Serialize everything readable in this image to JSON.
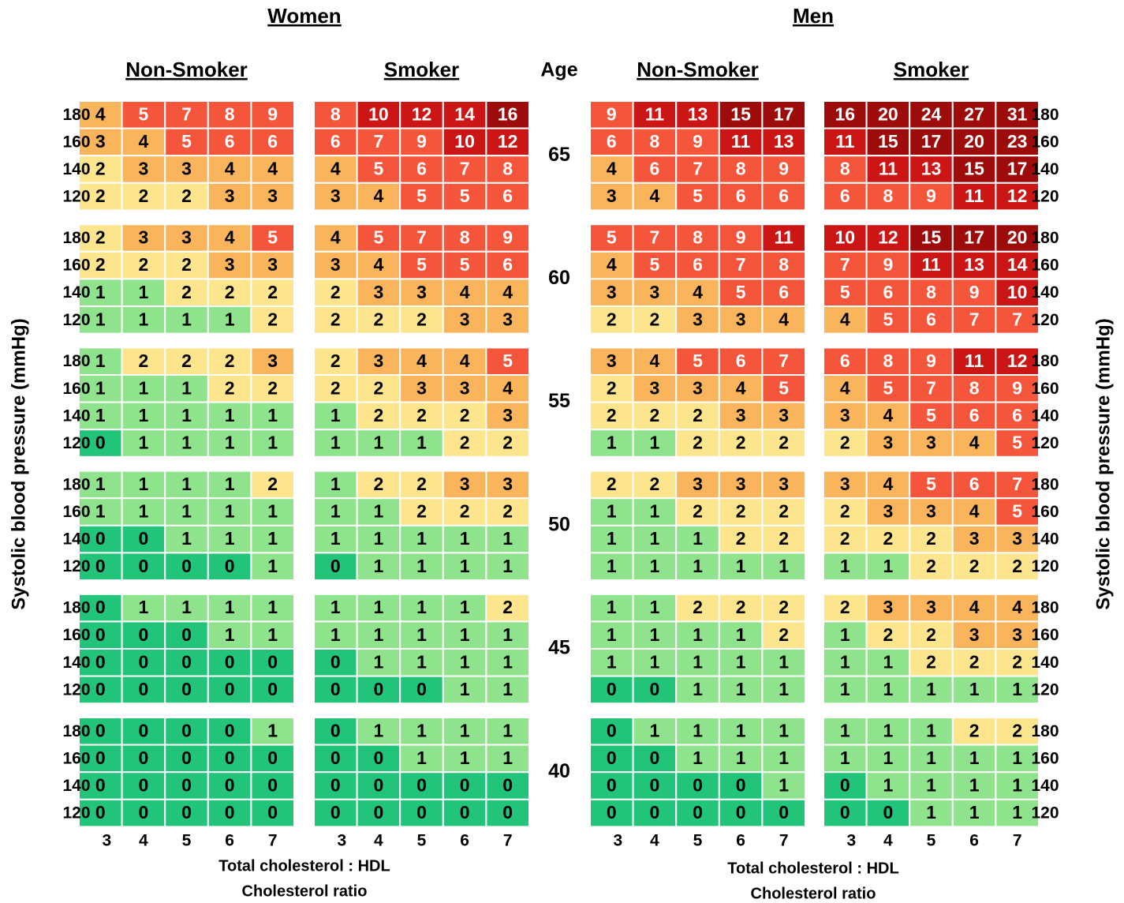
{
  "y_label": "Systolic blood pressure (mmHg)",
  "age_header": "Age",
  "ages": [
    {
      "age": 65,
      "sbp": [
        180,
        160,
        140,
        120
      ]
    },
    {
      "age": 60,
      "sbp": [
        180,
        160,
        140,
        120
      ]
    },
    {
      "age": 55,
      "sbp": [
        180,
        160,
        140,
        120
      ]
    },
    {
      "age": 50,
      "sbp": [
        180,
        160,
        140,
        120
      ]
    },
    {
      "age": 45,
      "sbp": [
        180,
        160,
        140,
        120
      ]
    },
    {
      "age": 40,
      "sbp": [
        180,
        160,
        140,
        120
      ]
    }
  ],
  "groups": [
    {
      "title": "Women",
      "x_label": [
        "Total cholesterol : HDL",
        "Cholesterol ratio"
      ],
      "panels": [
        {
          "title": "Non-Smoker",
          "columns": [
            3,
            4,
            5,
            6,
            7
          ],
          "blocks": [
            [
              [
                4,
                5,
                7,
                8,
                9
              ],
              [
                3,
                4,
                5,
                6,
                6
              ],
              [
                2,
                3,
                3,
                4,
                4
              ],
              [
                2,
                2,
                2,
                3,
                3
              ]
            ],
            [
              [
                2,
                3,
                3,
                4,
                5
              ],
              [
                2,
                2,
                2,
                3,
                3
              ],
              [
                1,
                1,
                2,
                2,
                2
              ],
              [
                1,
                1,
                1,
                1,
                2
              ]
            ],
            [
              [
                1,
                2,
                2,
                2,
                3
              ],
              [
                1,
                1,
                1,
                2,
                2
              ],
              [
                1,
                1,
                1,
                1,
                1
              ],
              [
                0,
                1,
                1,
                1,
                1
              ]
            ],
            [
              [
                1,
                1,
                1,
                1,
                2
              ],
              [
                1,
                1,
                1,
                1,
                1
              ],
              [
                0,
                0,
                1,
                1,
                1
              ],
              [
                0,
                0,
                0,
                0,
                1
              ]
            ],
            [
              [
                0,
                1,
                1,
                1,
                1
              ],
              [
                0,
                0,
                0,
                1,
                1
              ],
              [
                0,
                0,
                0,
                0,
                0
              ],
              [
                0,
                0,
                0,
                0,
                0
              ]
            ],
            [
              [
                0,
                0,
                0,
                0,
                1
              ],
              [
                0,
                0,
                0,
                0,
                0
              ],
              [
                0,
                0,
                0,
                0,
                0
              ],
              [
                0,
                0,
                0,
                0,
                0
              ]
            ]
          ]
        },
        {
          "title": "Smoker",
          "columns": [
            3,
            4,
            5,
            6,
            7
          ],
          "blocks": [
            [
              [
                8,
                10,
                12,
                14,
                16
              ],
              [
                6,
                7,
                9,
                10,
                12
              ],
              [
                4,
                5,
                6,
                7,
                8
              ],
              [
                3,
                4,
                5,
                5,
                6
              ]
            ],
            [
              [
                4,
                5,
                7,
                8,
                9
              ],
              [
                3,
                4,
                5,
                5,
                6
              ],
              [
                2,
                3,
                3,
                4,
                4
              ],
              [
                2,
                2,
                2,
                3,
                3
              ]
            ],
            [
              [
                2,
                3,
                4,
                4,
                5
              ],
              [
                2,
                2,
                3,
                3,
                4
              ],
              [
                1,
                2,
                2,
                2,
                3
              ],
              [
                1,
                1,
                1,
                2,
                2
              ]
            ],
            [
              [
                1,
                2,
                2,
                3,
                3
              ],
              [
                1,
                1,
                2,
                2,
                2
              ],
              [
                1,
                1,
                1,
                1,
                1
              ],
              [
                0,
                1,
                1,
                1,
                1
              ]
            ],
            [
              [
                1,
                1,
                1,
                1,
                2
              ],
              [
                1,
                1,
                1,
                1,
                1
              ],
              [
                0,
                1,
                1,
                1,
                1
              ],
              [
                0,
                0,
                0,
                1,
                1
              ]
            ],
            [
              [
                0,
                1,
                1,
                1,
                1
              ],
              [
                0,
                0,
                1,
                1,
                1
              ],
              [
                0,
                0,
                0,
                0,
                0
              ],
              [
                0,
                0,
                0,
                0,
                0
              ]
            ]
          ]
        }
      ]
    },
    {
      "title": "Men",
      "x_label": [
        "Total cholesterol : HDL",
        "Cholesterol ratio"
      ],
      "panels": [
        {
          "title": "Non-Smoker",
          "columns": [
            3,
            4,
            5,
            6,
            7
          ],
          "blocks": [
            [
              [
                9,
                11,
                13,
                15,
                17
              ],
              [
                6,
                8,
                9,
                11,
                13
              ],
              [
                4,
                6,
                7,
                8,
                9
              ],
              [
                3,
                4,
                5,
                6,
                6
              ]
            ],
            [
              [
                5,
                7,
                8,
                9,
                11
              ],
              [
                4,
                5,
                6,
                7,
                8
              ],
              [
                3,
                3,
                4,
                5,
                6
              ],
              [
                2,
                2,
                3,
                3,
                4
              ]
            ],
            [
              [
                3,
                4,
                5,
                6,
                7
              ],
              [
                2,
                3,
                3,
                4,
                5
              ],
              [
                2,
                2,
                2,
                3,
                3
              ],
              [
                1,
                1,
                2,
                2,
                2
              ]
            ],
            [
              [
                2,
                2,
                3,
                3,
                3
              ],
              [
                1,
                1,
                2,
                2,
                2
              ],
              [
                1,
                1,
                1,
                2,
                2
              ],
              [
                1,
                1,
                1,
                1,
                1
              ]
            ],
            [
              [
                1,
                1,
                2,
                2,
                2
              ],
              [
                1,
                1,
                1,
                1,
                2
              ],
              [
                1,
                1,
                1,
                1,
                1
              ],
              [
                0,
                0,
                1,
                1,
                1
              ]
            ],
            [
              [
                0,
                1,
                1,
                1,
                1
              ],
              [
                0,
                0,
                1,
                1,
                1
              ],
              [
                0,
                0,
                0,
                0,
                1
              ],
              [
                0,
                0,
                0,
                0,
                0
              ]
            ]
          ]
        },
        {
          "title": "Smoker",
          "columns": [
            3,
            4,
            5,
            6,
            7
          ],
          "blocks": [
            [
              [
                16,
                20,
                24,
                27,
                31
              ],
              [
                11,
                15,
                17,
                20,
                23
              ],
              [
                8,
                11,
                13,
                15,
                17
              ],
              [
                6,
                8,
                9,
                11,
                12
              ]
            ],
            [
              [
                10,
                12,
                15,
                17,
                20
              ],
              [
                7,
                9,
                11,
                13,
                14
              ],
              [
                5,
                6,
                8,
                9,
                10
              ],
              [
                4,
                5,
                6,
                7,
                7
              ]
            ],
            [
              [
                6,
                8,
                9,
                11,
                12
              ],
              [
                4,
                5,
                7,
                8,
                9
              ],
              [
                3,
                4,
                5,
                6,
                6
              ],
              [
                2,
                3,
                3,
                4,
                5
              ]
            ],
            [
              [
                3,
                4,
                5,
                6,
                7
              ],
              [
                2,
                3,
                3,
                4,
                5
              ],
              [
                2,
                2,
                2,
                3,
                3
              ],
              [
                1,
                1,
                2,
                2,
                2
              ]
            ],
            [
              [
                2,
                3,
                3,
                4,
                4
              ],
              [
                1,
                2,
                2,
                3,
                3
              ],
              [
                1,
                1,
                2,
                2,
                2
              ],
              [
                1,
                1,
                1,
                1,
                1
              ]
            ],
            [
              [
                1,
                1,
                1,
                2,
                2
              ],
              [
                1,
                1,
                1,
                1,
                1
              ],
              [
                0,
                1,
                1,
                1,
                1
              ],
              [
                0,
                0,
                1,
                1,
                1
              ]
            ]
          ]
        }
      ]
    }
  ]
}
